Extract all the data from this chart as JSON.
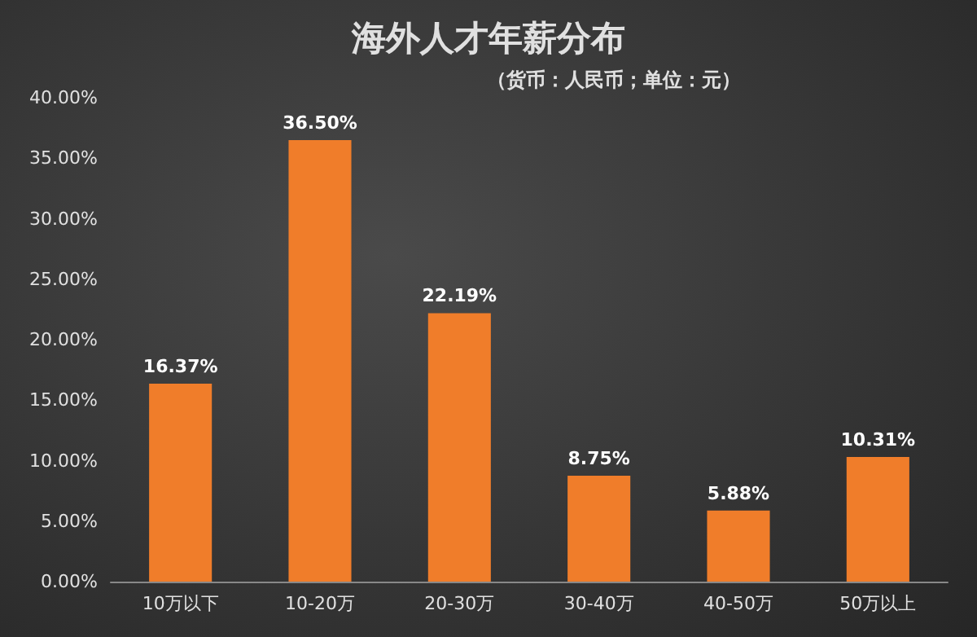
{
  "chart_data": {
    "type": "bar",
    "title": "海外人才年薪分布",
    "subtitle": "（货币：人民币；单位：元）",
    "categories": [
      "10万以下",
      "10-20万",
      "20-30万",
      "30-40万",
      "40-50万",
      "50万以上"
    ],
    "values": [
      16.37,
      36.5,
      22.19,
      8.75,
      5.88,
      10.31
    ],
    "value_labels": [
      "16.37%",
      "36.50%",
      "22.19%",
      "8.75%",
      "5.88%",
      "10.31%"
    ],
    "color": "#f07d2a",
    "ylim": [
      0,
      40
    ],
    "yticks": [
      {
        "value": 0,
        "label": "0.00%"
      },
      {
        "value": 5,
        "label": "5.00%"
      },
      {
        "value": 10,
        "label": "10.00%"
      },
      {
        "value": 15,
        "label": "15.00%"
      },
      {
        "value": 20,
        "label": "20.00%"
      },
      {
        "value": 25,
        "label": "25.00%"
      },
      {
        "value": 30,
        "label": "30.00%"
      },
      {
        "value": 35,
        "label": "35.00%"
      },
      {
        "value": 40,
        "label": "40.00%"
      }
    ],
    "grid": false
  }
}
